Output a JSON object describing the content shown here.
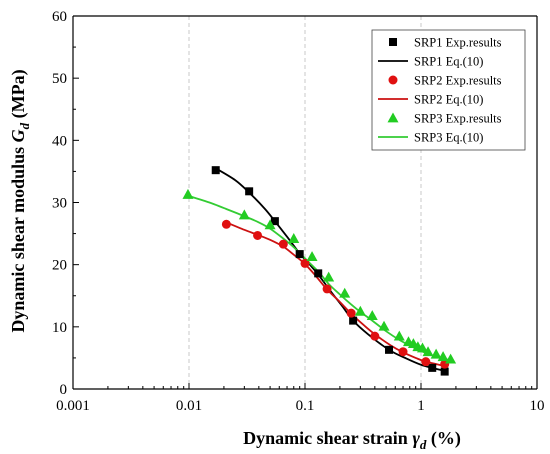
{
  "chart_data": {
    "type": "scatter",
    "xscale": "log",
    "xlim": [
      0.001,
      10
    ],
    "ylim": [
      0,
      60
    ],
    "xticks": [
      "0.001",
      "0.01",
      "0.1",
      "1",
      "10"
    ],
    "yticks": [
      "0",
      "10",
      "20",
      "30",
      "40",
      "50",
      "60"
    ],
    "xlabel_main": "Dynamic shear strain ",
    "xlabel_symbol": "γ",
    "xlabel_sub": "d",
    "xlabel_unit": " (%)",
    "ylabel_main": "Dynamic shear modulus ",
    "ylabel_symbol": "G",
    "ylabel_sub": "d",
    "ylabel_unit": " (MPa)",
    "grid": "vertical dashed at decades",
    "legend_position": "top-right",
    "series": [
      {
        "name": "SRP1 Exp.results",
        "kind": "points",
        "marker": "square",
        "color": "#000000",
        "x": [
          0.017,
          0.033,
          0.055,
          0.09,
          0.13,
          0.26,
          0.53,
          1.25,
          1.6
        ],
        "y": [
          35.2,
          31.8,
          27.0,
          21.7,
          18.6,
          11.0,
          6.3,
          3.4,
          2.8
        ]
      },
      {
        "name": "SRP1 Eq.(10)",
        "kind": "line",
        "color": "#000000",
        "x": [
          0.017,
          0.025,
          0.033,
          0.045,
          0.055,
          0.07,
          0.09,
          0.11,
          0.13,
          0.17,
          0.21,
          0.26,
          0.35,
          0.53,
          0.75,
          1.0,
          1.25,
          1.6
        ],
        "y": [
          35.5,
          33.6,
          31.6,
          29.0,
          27.0,
          24.5,
          21.8,
          20.0,
          18.4,
          15.5,
          13.3,
          11.0,
          8.8,
          6.3,
          4.9,
          3.9,
          3.4,
          2.9
        ]
      },
      {
        "name": "SRP2 Exp.results",
        "kind": "points",
        "marker": "circle",
        "color": "#e01010",
        "x": [
          0.021,
          0.039,
          0.065,
          0.1,
          0.155,
          0.25,
          0.4,
          0.7,
          1.1,
          1.6
        ],
        "y": [
          26.5,
          24.7,
          23.3,
          20.2,
          16.1,
          12.2,
          8.5,
          6.0,
          4.4,
          4.0
        ]
      },
      {
        "name": "SRP2 Eq.(10)",
        "kind": "line",
        "color": "#cc1111",
        "x": [
          0.021,
          0.03,
          0.039,
          0.05,
          0.065,
          0.08,
          0.1,
          0.125,
          0.155,
          0.2,
          0.25,
          0.32,
          0.4,
          0.55,
          0.7,
          0.9,
          1.1,
          1.6
        ],
        "y": [
          26.8,
          25.6,
          24.8,
          24.0,
          22.9,
          21.6,
          20.1,
          18.1,
          16.0,
          14.0,
          12.1,
          10.3,
          8.8,
          7.0,
          5.9,
          5.0,
          4.4,
          3.7
        ]
      },
      {
        "name": "SRP3 Exp.results",
        "kind": "points",
        "marker": "triangle",
        "color": "#22cc22",
        "x": [
          0.0098,
          0.03,
          0.05,
          0.08,
          0.115,
          0.16,
          0.22,
          0.3,
          0.38,
          0.48,
          0.65,
          0.78,
          0.86,
          0.94,
          1.03,
          1.15,
          1.35,
          1.55,
          1.8
        ],
        "y": [
          31.3,
          28.0,
          26.4,
          24.2,
          21.3,
          18.0,
          15.4,
          12.5,
          11.8,
          10.1,
          8.5,
          7.6,
          7.3,
          6.8,
          6.6,
          6.0,
          5.6,
          5.2,
          4.8
        ]
      },
      {
        "name": "SRP3 Eq.(10)",
        "kind": "line",
        "color": "#33cc33",
        "x": [
          0.0098,
          0.015,
          0.02,
          0.03,
          0.04,
          0.05,
          0.065,
          0.08,
          0.1,
          0.13,
          0.16,
          0.2,
          0.25,
          0.3,
          0.38,
          0.5,
          0.65,
          0.8,
          1.0,
          1.3,
          1.8
        ],
        "y": [
          31.1,
          30.0,
          29.1,
          27.8,
          26.8,
          25.8,
          24.2,
          22.8,
          21.0,
          18.9,
          16.9,
          15.2,
          13.6,
          12.4,
          11.0,
          9.3,
          7.9,
          7.0,
          6.1,
          5.3,
          4.6
        ]
      }
    ]
  }
}
